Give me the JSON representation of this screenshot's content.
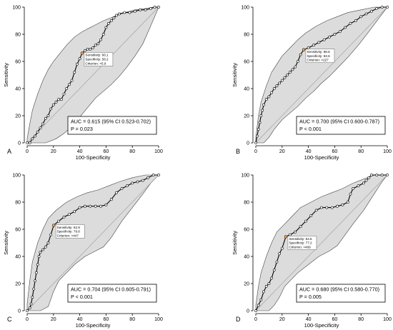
{
  "chart_data": [
    {
      "type": "line",
      "panel": "A",
      "xlabel": "100-Specificity",
      "ylabel": "Sensitivity",
      "xlim": [
        0,
        100
      ],
      "ylim": [
        0,
        100
      ],
      "xticks": [
        "0",
        "20",
        "40",
        "60",
        "80",
        "100"
      ],
      "yticks": [
        "0",
        "20",
        "40",
        "60",
        "80",
        "100"
      ],
      "auc_text": "AUC = 0.615 (95% CI 0.523-0.702)",
      "p_text": "P = 0.023",
      "criterion_point": {
        "x": 41.8,
        "y": 66.1
      },
      "criterion_lines": [
        "Sensitivity: 66.1",
        "Specificity: 58.2",
        "Criterion: >5.9"
      ],
      "roc": [
        [
          0,
          0
        ],
        [
          2,
          0
        ],
        [
          4,
          3
        ],
        [
          6,
          5
        ],
        [
          8,
          8
        ],
        [
          10,
          11
        ],
        [
          12,
          14
        ],
        [
          14,
          18
        ],
        [
          16,
          20
        ],
        [
          18,
          25
        ],
        [
          20,
          28
        ],
        [
          22,
          30
        ],
        [
          24,
          32
        ],
        [
          26,
          32
        ],
        [
          28,
          36
        ],
        [
          30,
          40
        ],
        [
          32,
          43
        ],
        [
          34,
          46
        ],
        [
          36,
          52
        ],
        [
          38,
          58
        ],
        [
          40,
          62
        ],
        [
          41.8,
          66.1
        ],
        [
          44,
          68
        ],
        [
          46,
          69
        ],
        [
          48,
          69
        ],
        [
          50,
          70
        ],
        [
          52,
          72
        ],
        [
          54,
          73
        ],
        [
          56,
          76
        ],
        [
          58,
          80
        ],
        [
          60,
          85
        ],
        [
          62,
          88
        ],
        [
          64,
          90
        ],
        [
          66,
          92
        ],
        [
          68,
          94
        ],
        [
          70,
          95
        ],
        [
          74,
          96
        ],
        [
          78,
          96
        ],
        [
          82,
          97
        ],
        [
          86,
          98
        ],
        [
          90,
          98
        ],
        [
          94,
          99
        ],
        [
          97,
          100
        ],
        [
          100,
          100
        ]
      ],
      "ci_upper": [
        [
          0,
          3
        ],
        [
          2,
          14
        ],
        [
          4,
          24
        ],
        [
          8,
          36
        ],
        [
          12,
          46
        ],
        [
          16,
          54
        ],
        [
          20,
          60
        ],
        [
          25,
          66
        ],
        [
          30,
          72
        ],
        [
          36,
          78
        ],
        [
          42,
          82
        ],
        [
          50,
          86
        ],
        [
          58,
          90
        ],
        [
          66,
          93
        ],
        [
          74,
          96
        ],
        [
          82,
          98
        ],
        [
          90,
          99
        ],
        [
          96,
          100
        ],
        [
          100,
          100
        ]
      ],
      "ci_lower": [
        [
          0,
          0
        ],
        [
          14,
          0
        ],
        [
          22,
          3
        ],
        [
          28,
          7
        ],
        [
          34,
          12
        ],
        [
          40,
          19
        ],
        [
          46,
          26
        ],
        [
          52,
          33
        ],
        [
          58,
          38
        ],
        [
          64,
          43
        ],
        [
          70,
          49
        ],
        [
          76,
          56
        ],
        [
          82,
          64
        ],
        [
          88,
          73
        ],
        [
          93,
          84
        ],
        [
          97,
          93
        ],
        [
          100,
          100
        ]
      ]
    },
    {
      "type": "line",
      "panel": "B",
      "xlabel": "100-Specificity",
      "ylabel": "Sensitivity",
      "xlim": [
        0,
        100
      ],
      "ylim": [
        0,
        100
      ],
      "xticks": [
        "0",
        "20",
        "40",
        "60",
        "80",
        "100"
      ],
      "yticks": [
        "0",
        "20",
        "40",
        "60",
        "80",
        "100"
      ],
      "auc_text": "AUC = 0.700 (95% CI 0.600-0.787)",
      "p_text": "P < 0.001",
      "criterion_point": {
        "x": 36.4,
        "y": 68.6
      },
      "criterion_lines": [
        "Sensitivity: 68.6",
        "Specificity: 63.6",
        "Criterion: >227"
      ],
      "roc": [
        [
          0,
          0
        ],
        [
          1,
          5
        ],
        [
          2,
          10
        ],
        [
          3,
          15
        ],
        [
          4,
          20
        ],
        [
          5,
          24
        ],
        [
          6,
          28
        ],
        [
          8,
          32
        ],
        [
          10,
          34
        ],
        [
          12,
          37
        ],
        [
          14,
          40
        ],
        [
          16,
          42
        ],
        [
          18,
          44
        ],
        [
          20,
          46
        ],
        [
          22,
          48
        ],
        [
          24,
          50
        ],
        [
          26,
          52
        ],
        [
          28,
          54
        ],
        [
          30,
          56
        ],
        [
          32,
          60
        ],
        [
          34,
          65
        ],
        [
          36.4,
          68.6
        ],
        [
          40,
          70
        ],
        [
          44,
          72
        ],
        [
          48,
          74
        ],
        [
          52,
          76
        ],
        [
          56,
          78
        ],
        [
          60,
          80
        ],
        [
          64,
          82
        ],
        [
          68,
          85
        ],
        [
          72,
          88
        ],
        [
          76,
          90
        ],
        [
          80,
          93
        ],
        [
          84,
          95
        ],
        [
          88,
          97
        ],
        [
          92,
          99
        ],
        [
          96,
          100
        ],
        [
          100,
          100
        ]
      ],
      "ci_upper": [
        [
          0,
          4
        ],
        [
          2,
          20
        ],
        [
          4,
          30
        ],
        [
          8,
          42
        ],
        [
          12,
          52
        ],
        [
          16,
          58
        ],
        [
          20,
          64
        ],
        [
          26,
          70
        ],
        [
          32,
          76
        ],
        [
          38,
          81
        ],
        [
          46,
          86
        ],
        [
          54,
          90
        ],
        [
          62,
          93
        ],
        [
          70,
          96
        ],
        [
          80,
          98
        ],
        [
          90,
          100
        ],
        [
          100,
          100
        ]
      ],
      "ci_lower": [
        [
          0,
          0
        ],
        [
          6,
          0
        ],
        [
          10,
          4
        ],
        [
          14,
          10
        ],
        [
          20,
          17
        ],
        [
          26,
          22
        ],
        [
          32,
          27
        ],
        [
          38,
          33
        ],
        [
          44,
          38
        ],
        [
          50,
          44
        ],
        [
          56,
          49
        ],
        [
          62,
          55
        ],
        [
          70,
          63
        ],
        [
          78,
          72
        ],
        [
          86,
          82
        ],
        [
          93,
          91
        ],
        [
          100,
          100
        ]
      ]
    },
    {
      "type": "line",
      "panel": "C",
      "xlabel": "100-Specificity",
      "ylabel": "Sensitivity",
      "xlim": [
        0,
        100
      ],
      "ylim": [
        0,
        100
      ],
      "xticks": [
        "0",
        "20",
        "40",
        "60",
        "80",
        "100"
      ],
      "yticks": [
        "0",
        "20",
        "40",
        "60",
        "80",
        "100"
      ],
      "auc_text": "AUC = 0.704 (95% CI 0.605-0.791)",
      "p_text": "P < 0.001",
      "criterion_point": {
        "x": 20.2,
        "y": 62.9
      },
      "criterion_lines": [
        "Sensitivity: 62.9",
        "Specificity: 79.8",
        "Criterion: >447"
      ],
      "roc": [
        [
          0,
          0
        ],
        [
          2,
          2
        ],
        [
          3,
          5
        ],
        [
          4,
          10
        ],
        [
          5,
          16
        ],
        [
          6,
          22
        ],
        [
          7,
          28
        ],
        [
          8,
          34
        ],
        [
          9,
          40
        ],
        [
          10,
          43
        ],
        [
          12,
          45
        ],
        [
          14,
          47
        ],
        [
          16,
          50
        ],
        [
          18,
          56
        ],
        [
          20.2,
          62.9
        ],
        [
          24,
          66
        ],
        [
          28,
          69
        ],
        [
          32,
          71
        ],
        [
          36,
          73
        ],
        [
          40,
          76
        ],
        [
          44,
          77
        ],
        [
          48,
          77
        ],
        [
          52,
          77
        ],
        [
          56,
          77
        ],
        [
          60,
          78
        ],
        [
          64,
          82
        ],
        [
          68,
          87
        ],
        [
          72,
          90
        ],
        [
          76,
          92
        ],
        [
          80,
          94
        ],
        [
          84,
          95
        ],
        [
          88,
          96
        ],
        [
          92,
          98
        ],
        [
          96,
          100
        ],
        [
          100,
          100
        ]
      ],
      "ci_upper": [
        [
          0,
          5
        ],
        [
          2,
          22
        ],
        [
          4,
          36
        ],
        [
          8,
          50
        ],
        [
          12,
          60
        ],
        [
          16,
          68
        ],
        [
          22,
          74
        ],
        [
          30,
          80
        ],
        [
          38,
          84
        ],
        [
          46,
          87
        ],
        [
          54,
          89
        ],
        [
          62,
          92
        ],
        [
          70,
          95
        ],
        [
          80,
          98
        ],
        [
          90,
          100
        ],
        [
          100,
          100
        ]
      ],
      "ci_lower": [
        [
          0,
          0
        ],
        [
          10,
          0
        ],
        [
          16,
          3
        ],
        [
          20,
          14
        ],
        [
          24,
          22
        ],
        [
          30,
          28
        ],
        [
          36,
          34
        ],
        [
          44,
          40
        ],
        [
          52,
          44
        ],
        [
          58,
          47
        ],
        [
          64,
          54
        ],
        [
          72,
          66
        ],
        [
          80,
          76
        ],
        [
          88,
          86
        ],
        [
          94,
          94
        ],
        [
          100,
          100
        ]
      ]
    },
    {
      "type": "line",
      "panel": "D",
      "xlabel": "100-Specificity",
      "ylabel": "Sensitivity",
      "xlim": [
        0,
        100
      ],
      "ylim": [
        0,
        100
      ],
      "xticks": [
        "0",
        "20",
        "40",
        "60",
        "80",
        "100"
      ],
      "yticks": [
        "0",
        "20",
        "40",
        "60",
        "80",
        "100"
      ],
      "auc_text": "AUC = 0.680 (95% CI 0.580-0.770)",
      "p_text": "P = 0.005",
      "criterion_point": {
        "x": 22.8,
        "y": 54.5
      },
      "criterion_lines": [
        "Sensitivity: 54.5",
        "Specificity: 77.2",
        "Criterion: >469"
      ],
      "roc": [
        [
          0,
          0
        ],
        [
          2,
          4
        ],
        [
          4,
          8
        ],
        [
          6,
          14
        ],
        [
          8,
          18
        ],
        [
          10,
          20
        ],
        [
          12,
          24
        ],
        [
          14,
          30
        ],
        [
          16,
          36
        ],
        [
          18,
          42
        ],
        [
          20,
          46
        ],
        [
          22.8,
          54.5
        ],
        [
          26,
          56
        ],
        [
          30,
          58
        ],
        [
          34,
          62
        ],
        [
          38,
          66
        ],
        [
          42,
          70
        ],
        [
          46,
          74
        ],
        [
          50,
          76
        ],
        [
          54,
          76
        ],
        [
          58,
          76
        ],
        [
          62,
          77
        ],
        [
          66,
          78
        ],
        [
          70,
          80
        ],
        [
          72,
          86
        ],
        [
          74,
          90
        ],
        [
          78,
          92
        ],
        [
          82,
          94
        ],
        [
          84,
          96
        ],
        [
          86,
          98
        ],
        [
          88,
          100
        ],
        [
          92,
          100
        ],
        [
          96,
          100
        ],
        [
          100,
          100
        ]
      ],
      "ci_upper": [
        [
          0,
          4
        ],
        [
          2,
          18
        ],
        [
          4,
          28
        ],
        [
          8,
          40
        ],
        [
          12,
          50
        ],
        [
          16,
          58
        ],
        [
          22,
          64
        ],
        [
          28,
          70
        ],
        [
          34,
          76
        ],
        [
          42,
          80
        ],
        [
          50,
          84
        ],
        [
          58,
          87
        ],
        [
          66,
          90
        ],
        [
          74,
          94
        ],
        [
          82,
          97
        ],
        [
          90,
          100
        ],
        [
          100,
          100
        ]
      ],
      "ci_lower": [
        [
          0,
          0
        ],
        [
          10,
          0
        ],
        [
          14,
          4
        ],
        [
          18,
          10
        ],
        [
          22,
          18
        ],
        [
          26,
          22
        ],
        [
          32,
          28
        ],
        [
          40,
          34
        ],
        [
          48,
          40
        ],
        [
          56,
          44
        ],
        [
          62,
          48
        ],
        [
          68,
          56
        ],
        [
          74,
          64
        ],
        [
          82,
          74
        ],
        [
          90,
          86
        ],
        [
          96,
          95
        ],
        [
          100,
          100
        ]
      ]
    }
  ]
}
